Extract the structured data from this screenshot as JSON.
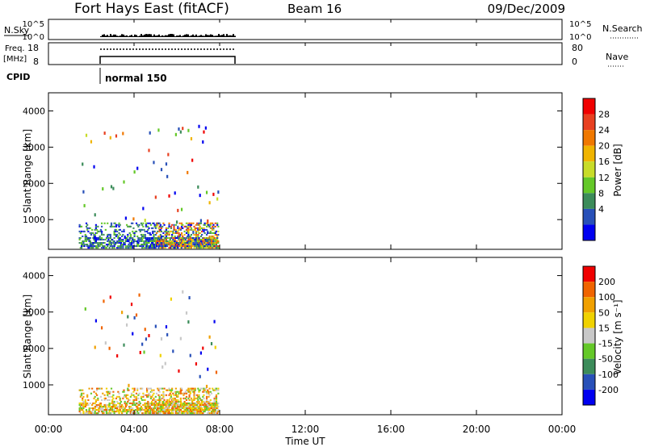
{
  "header": {
    "title": "Fort Hays East (fitACF)",
    "beam": "Beam 16",
    "date": "09/Dec/2009"
  },
  "panels": {
    "nsky": {
      "label": "N.Sky",
      "ticks": [
        "10^5",
        "10^0"
      ],
      "right_ticks": [
        "10^5",
        "10^0"
      ],
      "right_label": "N.Search"
    },
    "freq": {
      "label_line1": "Freq.",
      "label_line2": "[MHz]",
      "ticks": [
        "18",
        "8"
      ],
      "right_ticks": [
        "80",
        "0"
      ],
      "right_label": "Nave"
    },
    "cpid": {
      "label": "CPID",
      "mode": "normal 150"
    }
  },
  "chart_data": [
    {
      "type": "heatmap",
      "name": "power",
      "ylabel": "Slant Range [km]",
      "y_ticks": [
        "1000",
        "2000",
        "3000",
        "4000"
      ],
      "y_tick_values": [
        1000,
        2000,
        3000,
        4000
      ],
      "ylim": [
        180,
        4500
      ],
      "xlim": [
        0,
        24
      ],
      "colorbar": {
        "label": "Power [dB]",
        "ticks": [
          "28",
          "24",
          "20",
          "16",
          "12",
          "8",
          "4"
        ],
        "colors": [
          "#0000f0",
          "#2850b8",
          "#3c8c5a",
          "#64c828",
          "#c8dc28",
          "#f0b400",
          "#f07800",
          "#e84020",
          "#f00000"
        ]
      },
      "data_time_range": [
        "01:25",
        "07:55"
      ]
    },
    {
      "type": "heatmap",
      "name": "velocity",
      "ylabel": "Slant Range [km]",
      "y_ticks": [
        "1000",
        "2000",
        "3000",
        "4000"
      ],
      "y_tick_values": [
        1000,
        2000,
        3000,
        4000
      ],
      "ylim": [
        180,
        4500
      ],
      "xlim": [
        0,
        24
      ],
      "colorbar": {
        "label": "Velocity [m s⁻¹]",
        "ticks": [
          "200",
          "100",
          "50",
          "15",
          "-15",
          "-50",
          "-100",
          "-200"
        ],
        "colors": [
          "#0000f0",
          "#2850b8",
          "#3c8c5a",
          "#64c828",
          "#c8c8c8",
          "#f0d200",
          "#f0a000",
          "#f06400",
          "#f00000"
        ]
      },
      "data_time_range": [
        "01:25",
        "07:55"
      ]
    }
  ],
  "xaxis": {
    "label": "Time UT",
    "ticks": [
      "00:00",
      "04:00",
      "08:00",
      "12:00",
      "16:00",
      "20:00",
      "00:00"
    ],
    "tick_values": [
      0,
      4,
      8,
      12,
      16,
      20,
      24
    ]
  }
}
